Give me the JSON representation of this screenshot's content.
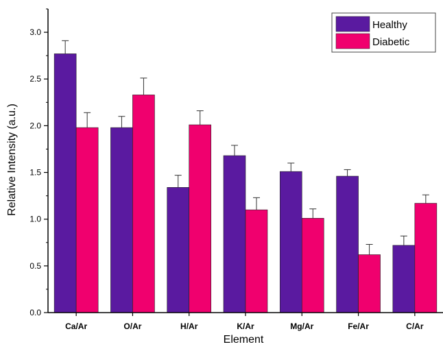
{
  "chart_data": {
    "type": "bar",
    "xlabel": "Element",
    "ylabel": "Relative Intensity (a.u.)",
    "categories": [
      "Ca/Ar",
      "O/Ar",
      "H/Ar",
      "K/Ar",
      "Mg/Ar",
      "Fe/Ar",
      "C/Ar"
    ],
    "series": [
      {
        "name": "Healthy",
        "color": "#5a1aa0",
        "values": [
          2.77,
          1.98,
          1.34,
          1.68,
          1.51,
          1.46,
          0.72
        ],
        "errors": [
          0.14,
          0.12,
          0.13,
          0.11,
          0.09,
          0.07,
          0.1
        ]
      },
      {
        "name": "Diabetic",
        "color": "#f0006e",
        "values": [
          1.98,
          2.33,
          2.01,
          1.1,
          1.01,
          0.62,
          1.17
        ],
        "errors": [
          0.16,
          0.18,
          0.15,
          0.13,
          0.1,
          0.11,
          0.09
        ]
      }
    ],
    "ylim": [
      0,
      3.25
    ],
    "yticks": [
      "0.0",
      "0.5",
      "1.0",
      "1.5",
      "2.0",
      "2.5",
      "3.0"
    ],
    "legend_position": "top-right",
    "grid": false
  }
}
